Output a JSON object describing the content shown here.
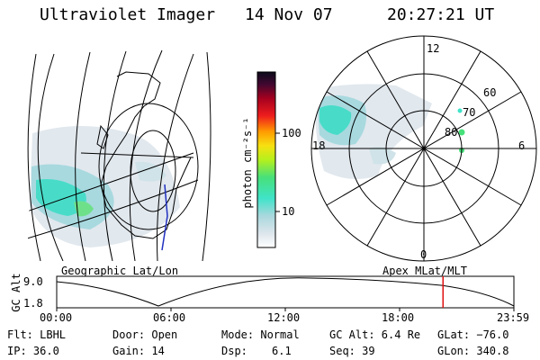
{
  "header": {
    "instrument": "Ultraviolet Imager",
    "date": "14 Nov 07",
    "time": "20:27:21 UT"
  },
  "left_map": {
    "caption": "Geographic Lat/Lon"
  },
  "colorbar": {
    "unit_label": "photon cm⁻²s⁻¹",
    "ticks": [
      "100",
      "10"
    ],
    "colors": [
      "#ffffff",
      "#dde6ec",
      "#a9d8dd",
      "#3fe3c9",
      "#47e07a",
      "#b6f01c",
      "#f7e012",
      "#ff9b00",
      "#ee1d1d",
      "#a5001f",
      "#400830",
      "#0a0a1a"
    ]
  },
  "polar_plot": {
    "caption": "Apex MLat/MLT",
    "hour_labels": {
      "top": "12",
      "left": "18",
      "right": "6",
      "bottom": "0"
    },
    "lat_labels": [
      "60",
      "70",
      "80"
    ]
  },
  "altitude_panel": {
    "ylabel": "GC Alt",
    "yticks": [
      "9.0",
      "1.8"
    ],
    "xticks": [
      "00:00",
      "06:00",
      "12:00",
      "18:00",
      "23:59"
    ],
    "current_time_fraction": 0.845
  },
  "info": {
    "filter": "Flt: LBHL",
    "ip": "IP: 36.0",
    "door": "Door: Open",
    "gain": "Gain: 14",
    "mode": "Mode: Normal",
    "dsp_label": "Dsp:",
    "dsp_value": "6.1",
    "gc_alt": "GC Alt: 6.4 Re",
    "seq": "Seq: 39",
    "glat": "GLat: −76.0",
    "glon": "GLon: 340.8"
  }
}
